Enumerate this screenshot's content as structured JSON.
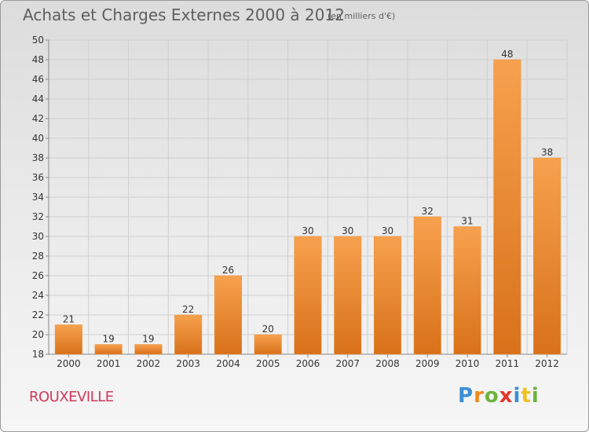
{
  "title": "Achats et Charges Externes 2000 à 2012",
  "subtitle": "(en milliers d'€)",
  "commune": "ROUXEVILLE",
  "logo": {
    "letters": [
      "P",
      "r",
      "o",
      "x",
      "i",
      "t",
      "i"
    ]
  },
  "colors": {
    "bar_top": "#f7a14e",
    "bar_bottom": "#d8711a",
    "grid": "#cfcfcf",
    "axis": "#888888",
    "title": "#5e5e5e",
    "commune": "#d2385a"
  },
  "chart_data": {
    "type": "bar",
    "title": "Achats et Charges Externes 2000 à 2012",
    "subtitle": "(en milliers d'€)",
    "categories": [
      "2000",
      "2001",
      "2002",
      "2003",
      "2004",
      "2005",
      "2006",
      "2007",
      "2008",
      "2009",
      "2010",
      "2011",
      "2012"
    ],
    "values": [
      21,
      19,
      19,
      22,
      26,
      20,
      30,
      30,
      30,
      32,
      31,
      48,
      38
    ],
    "data_labels": [
      "21",
      "19",
      "19",
      "22",
      "26",
      "20",
      "30",
      "30",
      "30",
      "32",
      "31",
      "48",
      "38"
    ],
    "xlabel": "",
    "ylabel": "",
    "ylim": [
      18,
      50
    ],
    "yticks": [
      18,
      20,
      22,
      24,
      26,
      28,
      30,
      32,
      34,
      36,
      38,
      40,
      42,
      44,
      46,
      48,
      50
    ],
    "grid": true,
    "legend": "none"
  }
}
